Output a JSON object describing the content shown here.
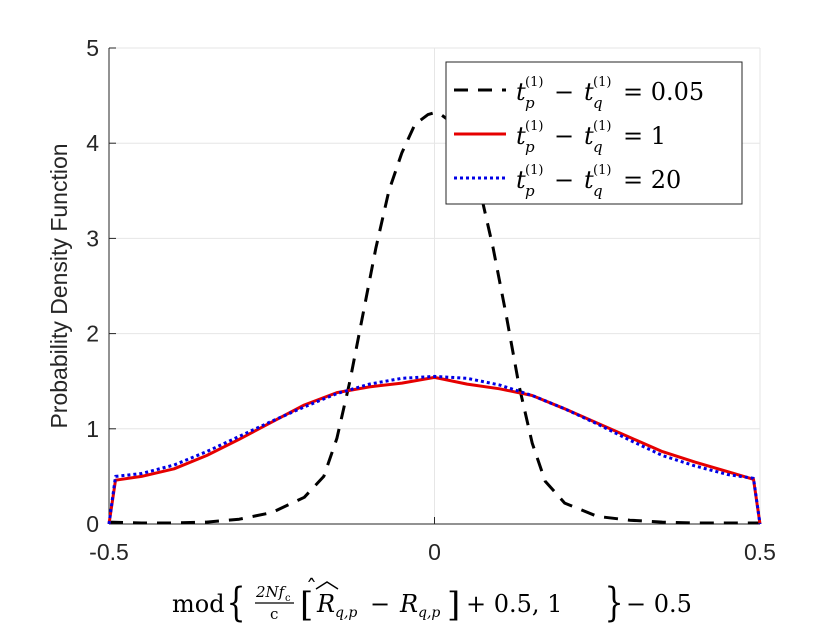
{
  "chart_data": {
    "type": "line",
    "title": "",
    "ylabel": "Probability Density Function",
    "xlabel": {
      "prefix": "mod",
      "frac_num": "2Nf",
      "frac_num_sub": "c",
      "frac_den": "c",
      "r_hat": "R",
      "r_hat_sub": "q,p",
      "r": "R",
      "r_sub": "q,p",
      "tail": "+ 0.5, 1",
      "suffix": "− 0.5"
    },
    "xlim": [
      -0.5,
      0.5
    ],
    "ylim": [
      0,
      5
    ],
    "xticks": [
      -0.5,
      0,
      0.5
    ],
    "xtick_labels": [
      "-0.5",
      "0",
      "0.5"
    ],
    "yticks": [
      0,
      1,
      2,
      3,
      4,
      5
    ],
    "ytick_labels": [
      "0",
      "1",
      "2",
      "3",
      "4",
      "5"
    ],
    "grid": true,
    "legend_position": "top-right",
    "series": [
      {
        "legend": {
          "t1": "t",
          "s1": "p",
          "t2": "t",
          "s2": "q",
          "sup": "(1)",
          "value": "= 0.05"
        },
        "color": "#000000",
        "style": "dashed",
        "x": [
          -0.5,
          -0.45,
          -0.4,
          -0.35,
          -0.3,
          -0.25,
          -0.2,
          -0.17,
          -0.15,
          -0.13,
          -0.11,
          -0.09,
          -0.07,
          -0.05,
          -0.03,
          -0.01,
          0,
          0.01,
          0.03,
          0.05,
          0.07,
          0.09,
          0.11,
          0.13,
          0.15,
          0.17,
          0.2,
          0.25,
          0.3,
          0.35,
          0.4,
          0.45,
          0.5
        ],
        "y": [
          0.02,
          0.01,
          0.01,
          0.02,
          0.05,
          0.12,
          0.28,
          0.5,
          0.9,
          1.5,
          2.2,
          2.9,
          3.5,
          3.9,
          4.2,
          4.3,
          4.32,
          4.3,
          4.2,
          3.95,
          3.5,
          2.9,
          2.2,
          1.45,
          0.85,
          0.45,
          0.22,
          0.08,
          0.04,
          0.02,
          0.01,
          0.01,
          0.01
        ]
      },
      {
        "legend": {
          "t1": "t",
          "s1": "p",
          "t2": "t",
          "s2": "q",
          "sup": "(1)",
          "value": "= 1"
        },
        "color": "#e60000",
        "style": "solid",
        "x": [
          -0.5,
          -0.49,
          -0.45,
          -0.4,
          -0.35,
          -0.3,
          -0.25,
          -0.2,
          -0.15,
          -0.1,
          -0.05,
          0,
          0.05,
          0.1,
          0.15,
          0.2,
          0.25,
          0.3,
          0.35,
          0.4,
          0.45,
          0.49,
          0.5
        ],
        "y": [
          0.0,
          0.46,
          0.5,
          0.58,
          0.72,
          0.89,
          1.07,
          1.25,
          1.38,
          1.44,
          1.48,
          1.54,
          1.47,
          1.42,
          1.35,
          1.21,
          1.06,
          0.91,
          0.76,
          0.65,
          0.55,
          0.47,
          0.0
        ]
      },
      {
        "legend": {
          "t1": "t",
          "s1": "p",
          "t2": "t",
          "s2": "q",
          "sup": "(1)",
          "value": "= 20"
        },
        "color": "#0000e6",
        "style": "dotted",
        "x": [
          -0.5,
          -0.49,
          -0.45,
          -0.4,
          -0.35,
          -0.3,
          -0.25,
          -0.2,
          -0.15,
          -0.1,
          -0.05,
          0,
          0.05,
          0.1,
          0.15,
          0.2,
          0.25,
          0.3,
          0.35,
          0.4,
          0.45,
          0.49,
          0.5
        ],
        "y": [
          0.0,
          0.5,
          0.53,
          0.62,
          0.76,
          0.92,
          1.08,
          1.23,
          1.37,
          1.47,
          1.53,
          1.55,
          1.53,
          1.46,
          1.35,
          1.21,
          1.05,
          0.88,
          0.72,
          0.61,
          0.52,
          0.48,
          0.0
        ]
      }
    ]
  }
}
